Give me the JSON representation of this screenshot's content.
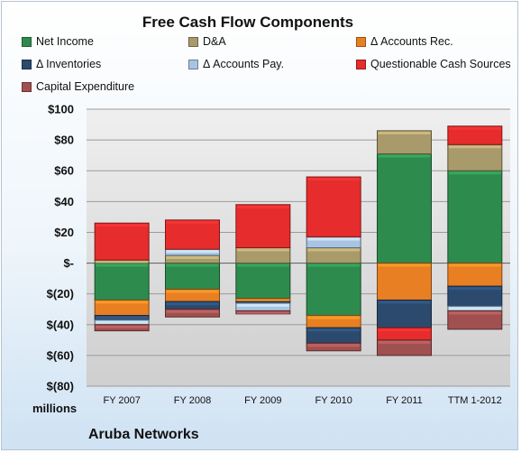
{
  "chart_data": {
    "type": "bar",
    "stacked": true,
    "title": "Free Cash Flow Components",
    "company": "Aruba Networks",
    "units_label": "millions",
    "categories": [
      "FY 2007",
      "FY 2008",
      "FY 2009",
      "FY 2010",
      "FY 2011",
      "TTM 1-2012"
    ],
    "ylim": [
      -80,
      100
    ],
    "y_ticks": [
      100,
      80,
      60,
      40,
      20,
      0,
      -20,
      -40,
      -60,
      -80
    ],
    "y_tick_labels": [
      "$100",
      "$80",
      "$60",
      "$40",
      "$20",
      "$-",
      "$(20)",
      "$(40)",
      "$(60)",
      "$(80)"
    ],
    "grid": true,
    "legend_position": "top",
    "series": [
      {
        "name": "Net Income",
        "color": "#2e8b4e",
        "values": [
          -24,
          -17,
          -23,
          -34,
          71,
          60
        ]
      },
      {
        "name": "D&A",
        "color": "#a89a6a",
        "values": [
          2,
          5,
          10,
          10,
          15,
          17
        ]
      },
      {
        "name": "Δ Accounts Rec.",
        "color": "#e87f22",
        "values": [
          -10,
          -8,
          -2,
          -8,
          -24,
          -15
        ]
      },
      {
        "name": "Δ Inventories",
        "color": "#2c4a6e",
        "values": [
          -3,
          -5,
          -1,
          -10,
          -18,
          -13
        ]
      },
      {
        "name": "Δ Accounts Pay.",
        "color": "#a8c4e2",
        "values": [
          -3,
          4,
          -5,
          7,
          0,
          -3
        ]
      },
      {
        "name": "Questionable Cash Sources",
        "color": "#e62c2c",
        "values": [
          24,
          19,
          28,
          39,
          0,
          12
        ]
      },
      {
        "name": "Capital Expenditure",
        "color": "#a05050",
        "values": [
          -4,
          -5,
          -2,
          -5,
          -10,
          -12
        ]
      }
    ],
    "negative_overflow": [
      {
        "series": "Questionable Cash Sources",
        "category": "FY 2011",
        "value": -8
      }
    ]
  }
}
